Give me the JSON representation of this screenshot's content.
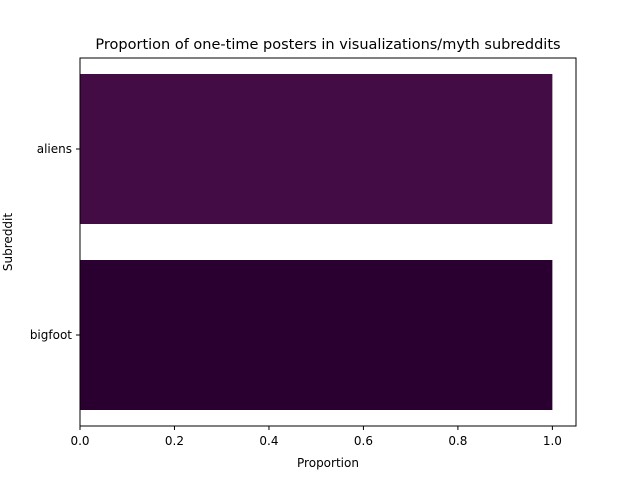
{
  "chart_data": {
    "type": "bar",
    "orientation": "horizontal",
    "title": "Proportion of one-time posters in visualizations/myth subreddits",
    "xlabel": "Proportion",
    "ylabel": "Subreddit",
    "categories": [
      "aliens",
      "bigfoot"
    ],
    "values": [
      1.0,
      1.0
    ],
    "colors": [
      "#440c44",
      "#2a0030"
    ],
    "xlim": [
      0,
      1.05
    ],
    "xticks": [
      0.0,
      0.2,
      0.4,
      0.6,
      0.8,
      1.0
    ],
    "xtick_labels": [
      "0.0",
      "0.2",
      "0.4",
      "0.6",
      "0.8",
      "1.0"
    ],
    "grid": false,
    "legend": "none"
  }
}
